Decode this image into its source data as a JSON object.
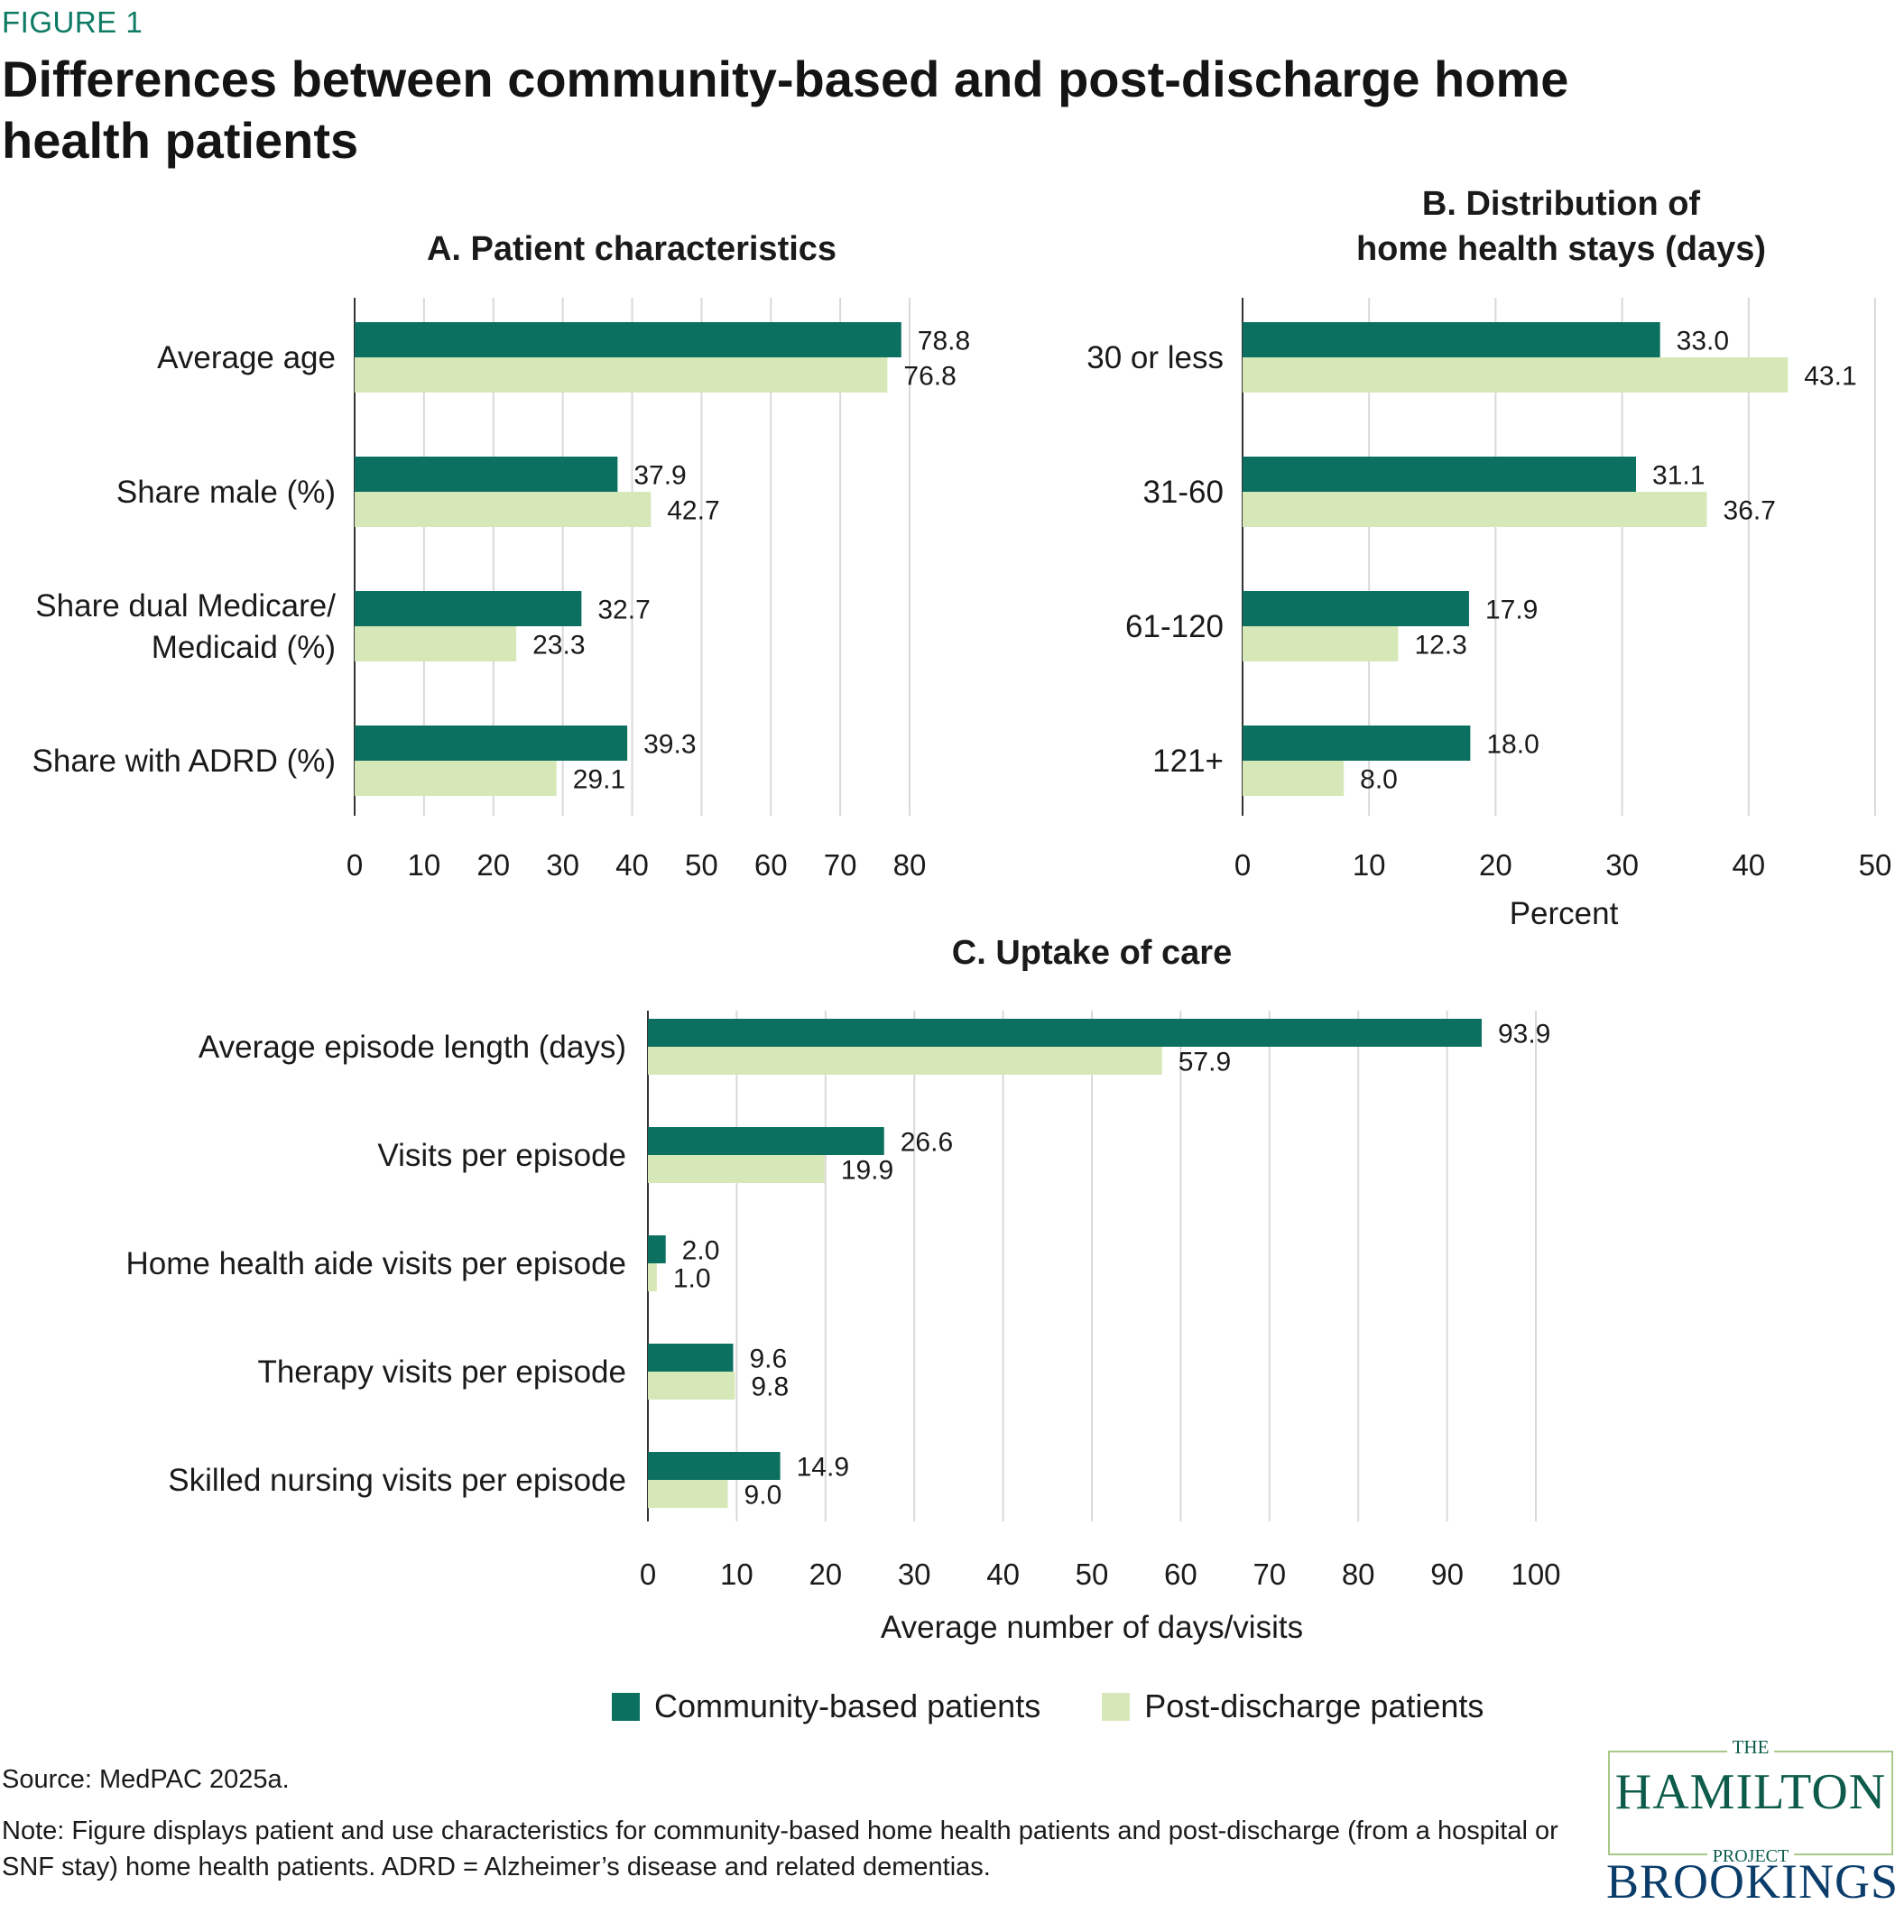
{
  "figure_label": "FIGURE 1",
  "title": "Differences between community-based and post-discharge home health patients",
  "colors": {
    "community": "#0b7060",
    "post": "#d7e8b8",
    "grid": "#d9d9d9",
    "axis": "#333333",
    "accent": "#0d7a63"
  },
  "legend": {
    "community": "Community-based patients",
    "post": "Post-discharge patients"
  },
  "chart_data": [
    {
      "panel": "A",
      "type": "bar",
      "orientation": "horizontal",
      "title": "A. Patient characteristics",
      "categories": [
        [
          "Average age"
        ],
        [
          "Share male (%)"
        ],
        [
          "Share dual Medicare/",
          "Medicaid (%)"
        ],
        [
          "Share with ADRD (%)"
        ]
      ],
      "series": [
        {
          "name": "Community-based patients",
          "values": [
            78.8,
            37.9,
            32.7,
            39.3
          ]
        },
        {
          "name": "Post-discharge patients",
          "values": [
            76.8,
            42.7,
            23.3,
            29.1
          ]
        }
      ],
      "xlim": [
        0,
        80
      ],
      "xticks": [
        "0",
        "10",
        "20",
        "30",
        "40",
        "50",
        "60",
        "70",
        "80"
      ],
      "xlabel": "",
      "grid": true,
      "data_labels": [
        [
          "78.8",
          "37.9",
          "32.7",
          "39.3"
        ],
        [
          "76.8",
          "42.7",
          "23.3",
          "29.1"
        ]
      ]
    },
    {
      "panel": "B",
      "type": "bar",
      "orientation": "horizontal",
      "title": [
        "B. Distribution of",
        "home health stays (days)"
      ],
      "categories": [
        [
          "30 or less"
        ],
        [
          "31-60"
        ],
        [
          "61-120"
        ],
        [
          "121+"
        ]
      ],
      "series": [
        {
          "name": "Community-based patients",
          "values": [
            33.0,
            31.1,
            17.9,
            18.0
          ]
        },
        {
          "name": "Post-discharge patients",
          "values": [
            43.1,
            36.7,
            12.3,
            8.0
          ]
        }
      ],
      "xlim": [
        0,
        50
      ],
      "xticks": [
        "0",
        "10",
        "20",
        "30",
        "40",
        "50"
      ],
      "xlabel": "Percent",
      "grid": true,
      "data_labels": [
        [
          "33.0",
          "31.1",
          "17.9",
          "18.0"
        ],
        [
          "43.1",
          "36.7",
          "12.3",
          "8.0"
        ]
      ]
    },
    {
      "panel": "C",
      "type": "bar",
      "orientation": "horizontal",
      "title": "C. Uptake of care",
      "categories": [
        [
          "Average episode length (days)"
        ],
        [
          "Visits per episode"
        ],
        [
          "Home health aide visits per episode"
        ],
        [
          "Therapy visits per episode"
        ],
        [
          "Skilled nursing visits per episode"
        ]
      ],
      "series": [
        {
          "name": "Community-based patients",
          "values": [
            93.9,
            26.6,
            2.0,
            9.6,
            14.9
          ]
        },
        {
          "name": "Post-discharge patients",
          "values": [
            57.9,
            19.9,
            1.0,
            9.8,
            9.0
          ]
        }
      ],
      "xlim": [
        0,
        100
      ],
      "xticks": [
        "0",
        "10",
        "20",
        "30",
        "40",
        "50",
        "60",
        "70",
        "80",
        "90",
        "100"
      ],
      "xlabel": "Average number of days/visits",
      "grid": true,
      "data_labels": [
        [
          "93.9",
          "26.6",
          "2.0",
          "9.6",
          "14.9"
        ],
        [
          "57.9",
          "19.9",
          "1.0",
          "9.8",
          "9.0"
        ]
      ]
    }
  ],
  "source": "Source: MedPAC 2025a.",
  "note": "Note: Figure displays patient and use characteristics for community-based home health patients and post-discharge (from a hospital or SNF stay) home health patients. ADRD = Alzheimer’s disease and related dementias.",
  "logos": {
    "hamilton_the": "THE",
    "hamilton_name": "HAMILTON",
    "hamilton_project": "PROJECT",
    "brookings": "BROOKINGS"
  }
}
